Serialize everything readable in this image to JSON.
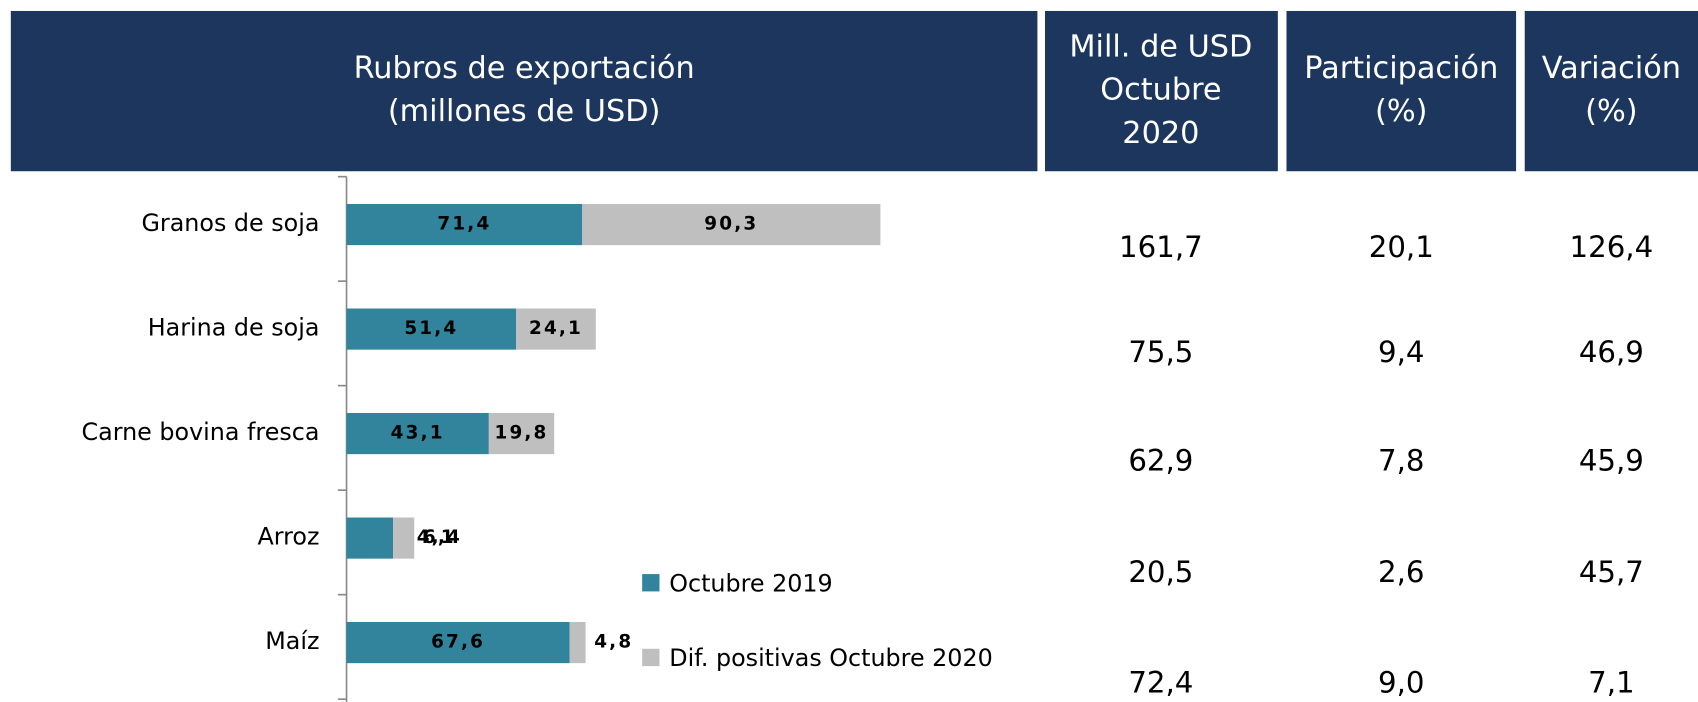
{
  "chart_data": {
    "type": "bar",
    "orientation": "horizontal",
    "stacked": true,
    "categories": [
      "Granos de soja",
      "Harina de soja",
      "Carne bovina fresca",
      "Arroz",
      "Maíz"
    ],
    "series": [
      {
        "name": "Octubre 2019",
        "color": "#31849b",
        "values": [
          71.4,
          51.4,
          43.1,
          14.1,
          67.6
        ],
        "value_labels": [
          "71,4",
          "51,4",
          "43,1",
          "14,1",
          "67,6"
        ]
      },
      {
        "name": "Dif. positivas Octubre 2020",
        "color": "#bfbfbf",
        "values": [
          90.3,
          24.1,
          19.8,
          6.4,
          4.8
        ],
        "value_labels": [
          "90,3",
          "24,1",
          "19,8",
          "6,4",
          "4,8"
        ]
      }
    ]
  },
  "table": {
    "headers": [
      [
        "Rubros de exportación",
        "(millones de USD)"
      ],
      [
        "Mill. de USD",
        "Octubre",
        "2020"
      ],
      [
        "Participación",
        "(%)"
      ],
      [
        "Variación",
        "(%)"
      ]
    ],
    "rows": [
      [
        "161,7",
        "20,1",
        "126,4"
      ],
      [
        "75,5",
        "9,4",
        "46,9"
      ],
      [
        "62,9",
        "7,8",
        "45,9"
      ],
      [
        "20,5",
        "2,6",
        "45,7"
      ],
      [
        "72,4",
        "9,0",
        "7,1"
      ]
    ]
  }
}
